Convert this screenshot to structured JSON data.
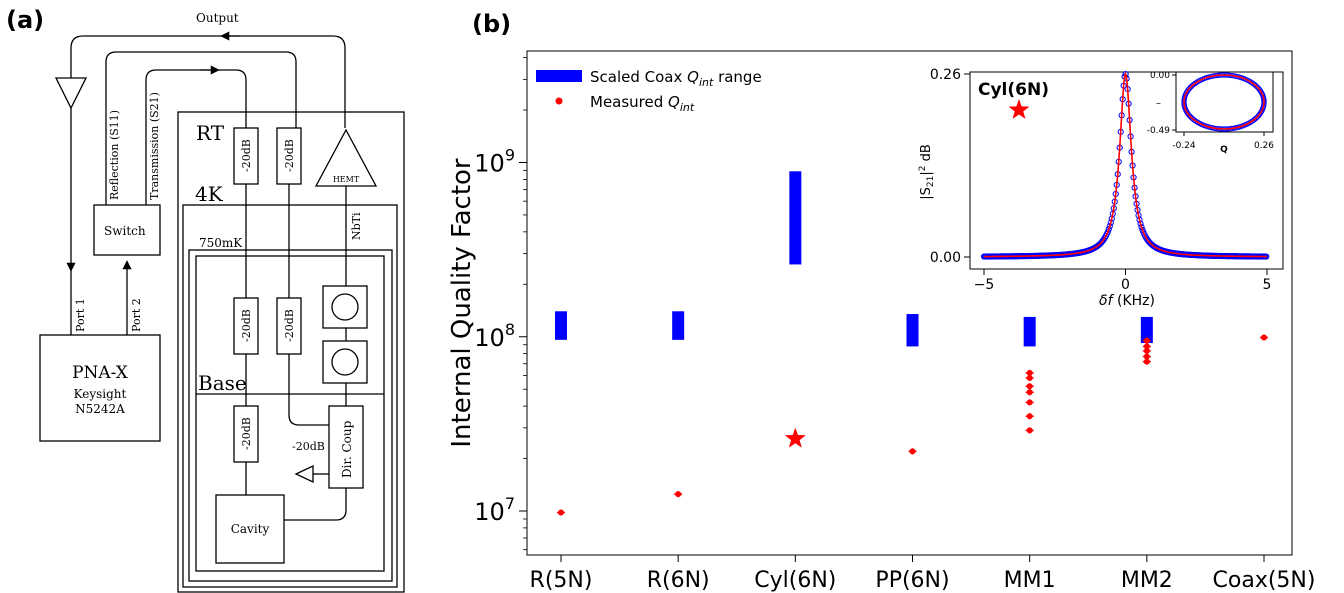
{
  "panel_a": {
    "label": "(a)",
    "output": "Output",
    "reflection": "Reflection (S11)",
    "transmission": "Transmission (S21)",
    "switch": "Switch",
    "port1": "Port 1",
    "port2": "Port 2",
    "pna_line1": "PNA-X",
    "pna_line2": "Keysight",
    "pna_line3": "N5242A",
    "rt": "RT",
    "k4": "4K",
    "mk750": "750mK",
    "base": "Base",
    "att": "-20dB",
    "hemt": "HEMT",
    "nbti": "NbTi",
    "dircoup": "Dir. Coup",
    "cavity": "Cavity"
  },
  "panel_b": {
    "label": "(b)"
  },
  "chart_data": [
    {
      "type": "bar",
      "ylabel": "Internal Quality Factor",
      "yscale": "log",
      "ytick_labels": [
        "10^7",
        "10^8",
        "10^9"
      ],
      "categories": [
        "R(5N)",
        "R(6N)",
        "Cyl(6N)",
        "PP(6N)",
        "MM1",
        "MM2",
        "Coax(5N)"
      ],
      "series": [
        {
          "name": "Scaled Coax Q_int range",
          "color": "#0000ff",
          "ranges": [
            [
              96000000.0,
              140000000.0
            ],
            [
              96000000.0,
              140000000.0
            ],
            [
              260000000.0,
              890000000.0
            ],
            [
              88000000.0,
              135000000.0
            ],
            [
              88000000.0,
              130000000.0
            ],
            [
              92000000.0,
              130000000.0
            ],
            null
          ]
        },
        {
          "name": "Measured Q_int",
          "color": "#ff0000",
          "points": [
            {
              "cat": "R(5N)",
              "values": [
                9800000.0
              ]
            },
            {
              "cat": "R(6N)",
              "values": [
                12500000.0
              ]
            },
            {
              "cat": "Cyl(6N)",
              "values": [
                26000000.0
              ],
              "marker": "star"
            },
            {
              "cat": "PP(6N)",
              "values": [
                22000000.0
              ]
            },
            {
              "cat": "MM1",
              "values": [
                62000000.0,
                58000000.0,
                52000000.0,
                48000000.0,
                42000000.0,
                35000000.0,
                29000000.0
              ]
            },
            {
              "cat": "MM2",
              "values": [
                95000000.0,
                88000000.0,
                83000000.0,
                77000000.0,
                72000000.0
              ]
            },
            {
              "cat": "Coax(5N)",
              "values": [
                99000000.0
              ]
            }
          ]
        }
      ],
      "legend": "top-left",
      "legend_labels": {
        "range_prefix": "Scaled Coax ",
        "range_q": "Q",
        "range_sub": "int",
        "range_suffix": " range",
        "meas_prefix": "Measured ",
        "meas_q": "Q",
        "meas_sub": "int"
      }
    },
    {
      "type": "line",
      "title": "Cyl(6N)",
      "xlabel": "δf (KHz)",
      "ylabel": "|S21|² dB",
      "xlim": [
        -5,
        5
      ],
      "ylim": [
        0,
        0.26
      ],
      "xticks": [
        "−5",
        "0",
        "5"
      ],
      "yticks": [
        "0.00",
        "0.26"
      ],
      "lorentzian_halfwidth_khz": 0.25,
      "series": [
        {
          "marker": "open-circle",
          "color": "#0000ff"
        },
        {
          "line": "fit",
          "color": "#ff0000"
        }
      ]
    },
    {
      "type": "scatter",
      "xlabel": "Q",
      "xticks": [
        "-0.24",
        "0.26"
      ],
      "yticks": [
        "0.00",
        "-0.49"
      ],
      "ylabel": "–",
      "xlim": [
        -0.24,
        0.26
      ],
      "ylim": [
        -0.49,
        0.0
      ],
      "shape": "circle"
    }
  ]
}
